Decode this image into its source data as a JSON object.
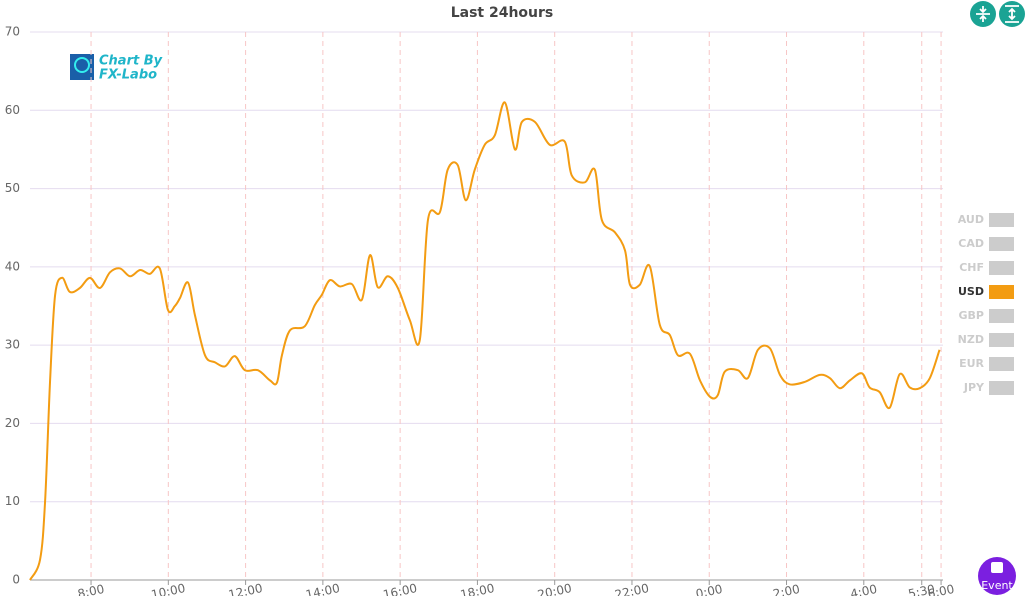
{
  "chart_data": {
    "type": "line",
    "title": "Last 24hours",
    "watermark": [
      "Chart By",
      "FX-Labo"
    ],
    "event_button": "Event",
    "x": [
      6.42,
      6.68,
      6.81,
      6.94,
      7.07,
      7.25,
      7.45,
      7.71,
      7.97,
      8.23,
      8.49,
      8.75,
      9.01,
      9.27,
      9.52,
      9.78,
      9.99,
      10.17,
      10.3,
      10.51,
      10.69,
      10.95,
      11.21,
      11.47,
      11.72,
      11.98,
      12.32,
      12.63,
      12.81,
      12.94,
      13.15,
      13.53,
      13.79,
      13.97,
      14.18,
      14.44,
      14.75,
      15.01,
      15.22,
      15.42,
      15.68,
      15.94,
      16.25,
      16.51,
      16.72,
      17.03,
      17.23,
      17.49,
      17.7,
      17.93,
      18.19,
      18.45,
      18.71,
      18.97,
      19.15,
      19.49,
      19.87,
      20.26,
      20.44,
      20.78,
      21.04,
      21.22,
      21.56,
      21.82,
      21.95,
      22.2,
      22.46,
      22.72,
      22.98,
      23.19,
      23.5,
      23.76,
      24.02,
      24.22,
      24.4,
      24.74,
      25.0,
      25.26,
      25.57,
      25.83,
      26.08,
      26.47,
      26.86,
      27.12,
      27.38,
      27.64,
      27.95,
      28.15,
      28.41,
      28.67,
      28.93,
      29.19,
      29.45,
      29.71,
      29.96
    ],
    "series": [
      {
        "name": "USD",
        "color": "#f39c12",
        "values": [
          0,
          2.6,
          10,
          25.5,
          36.4,
          38.6,
          36.8,
          37.3,
          38.6,
          37.3,
          39.3,
          39.8,
          38.8,
          39.6,
          39.1,
          39.8,
          34.5,
          35,
          36,
          38,
          33.8,
          28.7,
          27.8,
          27.3,
          28.6,
          26.8,
          26.8,
          25.5,
          25.2,
          28.7,
          31.9,
          32.4,
          35.1,
          36.4,
          38.3,
          37.5,
          37.8,
          35.8,
          41.5,
          37.4,
          38.8,
          37.3,
          33.2,
          30.7,
          46,
          47,
          52.4,
          53,
          48.5,
          52.4,
          55.6,
          56.8,
          61,
          55,
          58.5,
          58.5,
          55.6,
          56,
          51.7,
          50.8,
          52.4,
          46,
          44.4,
          42.1,
          37.7,
          37.7,
          40.1,
          32.6,
          31.3,
          28.7,
          28.9,
          25.5,
          23.4,
          23.6,
          26.6,
          26.8,
          25.8,
          29.4,
          29.6,
          26.2,
          25,
          25.3,
          26.2,
          25.8,
          24.5,
          25.5,
          26.4,
          24.6,
          24,
          22,
          26.3,
          24.6,
          24.5,
          25.8,
          29.4
        ]
      }
    ],
    "legend": [
      {
        "name": "AUD",
        "color": "#cccccc"
      },
      {
        "name": "CAD",
        "color": "#cccccc"
      },
      {
        "name": "CHF",
        "color": "#cccccc"
      },
      {
        "name": "USD",
        "color": "#f39c12"
      },
      {
        "name": "GBP",
        "color": "#cccccc"
      },
      {
        "name": "NZD",
        "color": "#cccccc"
      },
      {
        "name": "EUR",
        "color": "#cccccc"
      },
      {
        "name": "JPY",
        "color": "#cccccc"
      }
    ],
    "xlim": [
      6.42,
      30.05
    ],
    "xticks": [
      {
        "value": 8,
        "label": "8:00"
      },
      {
        "value": 10,
        "label": "10:00"
      },
      {
        "value": 12,
        "label": "12:00"
      },
      {
        "value": 14,
        "label": "14:00"
      },
      {
        "value": 16,
        "label": "16:00"
      },
      {
        "value": 18,
        "label": "18:00"
      },
      {
        "value": 20,
        "label": "20:00"
      },
      {
        "value": 22,
        "label": "22:00"
      },
      {
        "value": 24,
        "label": "0:00"
      },
      {
        "value": 26,
        "label": "2:00"
      },
      {
        "value": 28,
        "label": "4:00"
      },
      {
        "value": 29.5,
        "label": "5:30"
      },
      {
        "value": 30,
        "label": "6:00"
      }
    ],
    "ylim": [
      0,
      70
    ],
    "yticks": [
      0,
      10,
      20,
      30,
      40,
      50,
      60,
      70
    ],
    "grid": true
  }
}
